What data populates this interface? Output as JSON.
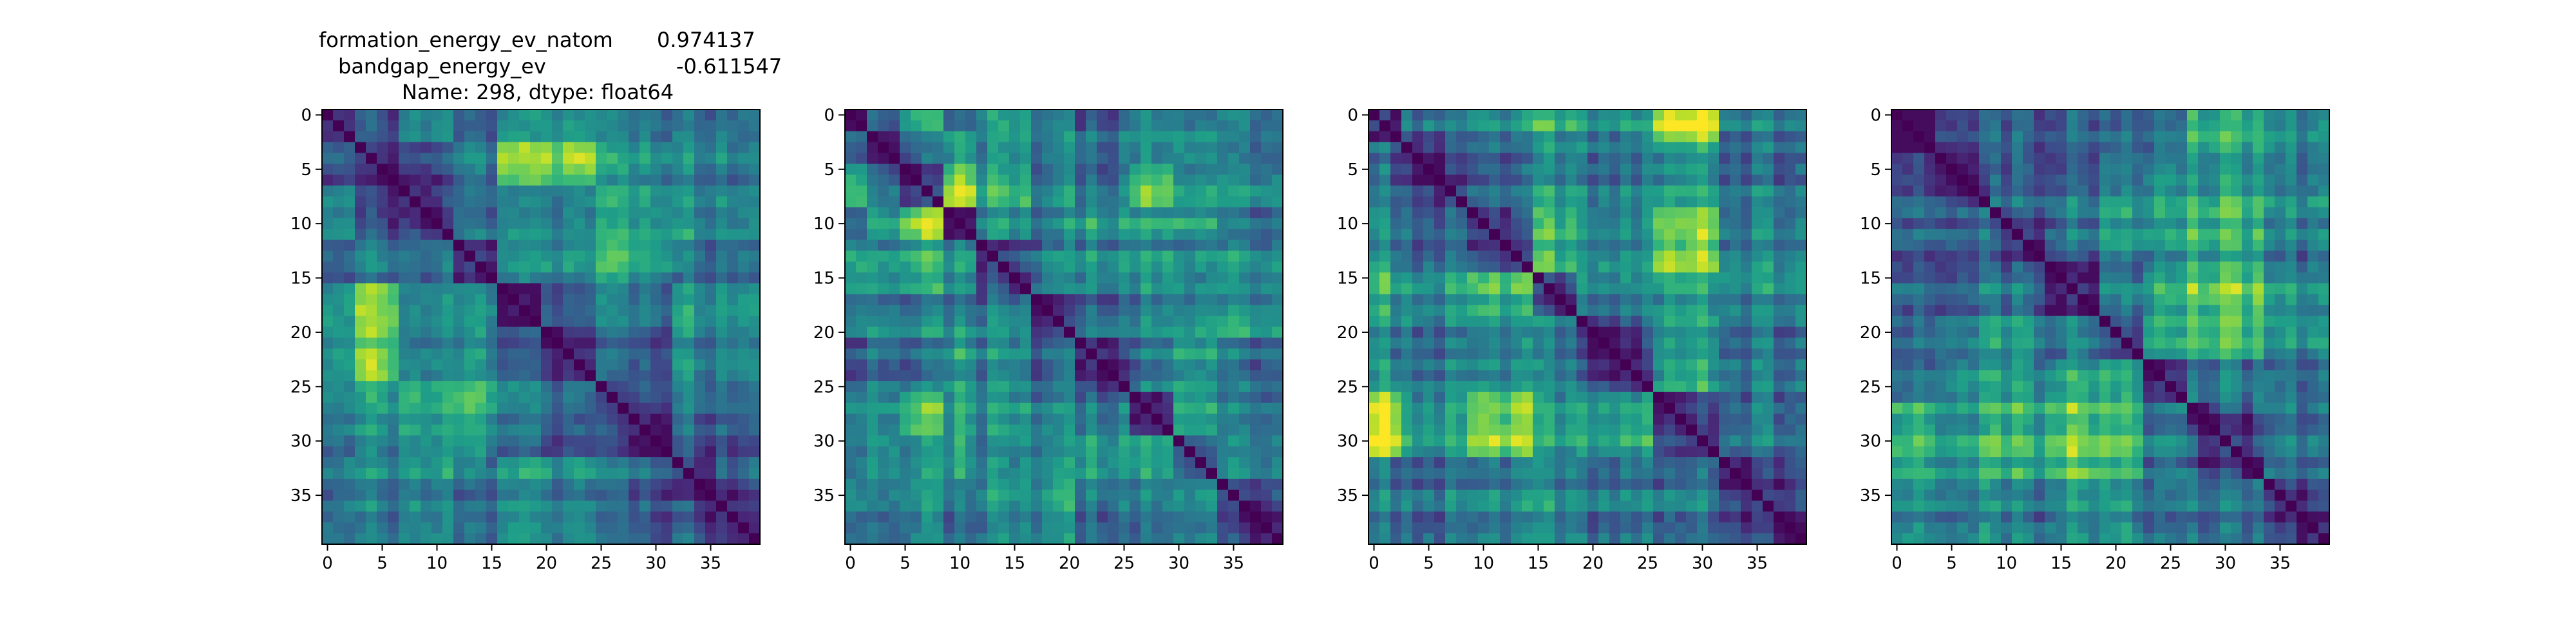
{
  "figure": {
    "title_lines": [
      {
        "label": "formation_energy_ev_natom",
        "value": "0.974137"
      },
      {
        "label": "bandgap_energy_ev",
        "value": "-0.611547"
      },
      {
        "text": "Name: 298, dtype: float64"
      }
    ]
  },
  "colormap": {
    "name": "viridis",
    "stops": [
      "#440154",
      "#482878",
      "#3e4989",
      "#31688e",
      "#26828e",
      "#1f9e89",
      "#35b779",
      "#6ece58",
      "#b5de2b",
      "#fde725"
    ]
  },
  "chart_data": [
    {
      "type": "heatmap",
      "size": 40,
      "xticks": [
        0,
        5,
        10,
        15,
        20,
        25,
        30,
        35
      ],
      "yticks": [
        0,
        5,
        10,
        15,
        20,
        25,
        30,
        35
      ],
      "diagonal_value": 0,
      "blocks": [
        0,
        3,
        7,
        12,
        16,
        20,
        25,
        32,
        40
      ],
      "block_levels": [
        [
          0.0,
          0.25,
          0.45,
          0.3,
          0.55,
          0.5,
          0.4,
          0.35
        ],
        [
          0.25,
          0.0,
          0.2,
          0.4,
          0.85,
          0.8,
          0.5,
          0.4
        ],
        [
          0.45,
          0.2,
          0.0,
          0.35,
          0.5,
          0.45,
          0.55,
          0.45
        ],
        [
          0.3,
          0.4,
          0.35,
          0.0,
          0.55,
          0.5,
          0.6,
          0.35
        ],
        [
          0.55,
          0.85,
          0.5,
          0.55,
          0.0,
          0.35,
          0.45,
          0.55
        ],
        [
          0.5,
          0.8,
          0.45,
          0.5,
          0.35,
          0.0,
          0.3,
          0.45
        ],
        [
          0.4,
          0.5,
          0.55,
          0.6,
          0.45,
          0.3,
          0.0,
          0.3
        ],
        [
          0.35,
          0.4,
          0.45,
          0.35,
          0.55,
          0.45,
          0.3,
          0.0
        ]
      ],
      "seed": 11
    },
    {
      "type": "heatmap",
      "size": 40,
      "xticks": [
        0,
        5,
        10,
        15,
        20,
        25,
        30,
        35
      ],
      "yticks": [
        0,
        5,
        10,
        15,
        20,
        25,
        30,
        35
      ],
      "diagonal_value": 0,
      "blocks": [
        0,
        2,
        5,
        9,
        12,
        17,
        21,
        26,
        30,
        34,
        40
      ],
      "block_levels": [
        [
          0.0,
          0.4,
          0.7,
          0.45,
          0.6,
          0.5,
          0.35,
          0.55,
          0.4,
          0.5
        ],
        [
          0.4,
          0.0,
          0.35,
          0.6,
          0.5,
          0.45,
          0.4,
          0.5,
          0.45,
          0.4
        ],
        [
          0.7,
          0.35,
          0.0,
          0.85,
          0.55,
          0.4,
          0.35,
          0.7,
          0.4,
          0.45
        ],
        [
          0.45,
          0.6,
          0.85,
          0.0,
          0.5,
          0.45,
          0.55,
          0.6,
          0.5,
          0.4
        ],
        [
          0.6,
          0.5,
          0.55,
          0.5,
          0.0,
          0.4,
          0.45,
          0.5,
          0.35,
          0.45
        ],
        [
          0.5,
          0.45,
          0.4,
          0.45,
          0.4,
          0.0,
          0.35,
          0.45,
          0.4,
          0.5
        ],
        [
          0.35,
          0.4,
          0.35,
          0.55,
          0.45,
          0.35,
          0.0,
          0.4,
          0.45,
          0.35
        ],
        [
          0.55,
          0.5,
          0.7,
          0.6,
          0.5,
          0.45,
          0.4,
          0.0,
          0.5,
          0.4
        ],
        [
          0.4,
          0.45,
          0.4,
          0.5,
          0.35,
          0.4,
          0.45,
          0.5,
          0.0,
          0.35
        ],
        [
          0.5,
          0.4,
          0.45,
          0.4,
          0.45,
          0.5,
          0.35,
          0.4,
          0.35,
          0.0
        ]
      ],
      "seed": 23
    },
    {
      "type": "heatmap",
      "size": 40,
      "xticks": [
        0,
        5,
        10,
        15,
        20,
        25,
        30,
        35
      ],
      "yticks": [
        0,
        5,
        10,
        15,
        20,
        25,
        30,
        35
      ],
      "diagonal_value": 0,
      "blocks": [
        0,
        3,
        9,
        15,
        19,
        26,
        32,
        40
      ],
      "block_levels": [
        [
          0.0,
          0.35,
          0.45,
          0.55,
          0.5,
          0.9,
          0.4
        ],
        [
          0.35,
          0.0,
          0.3,
          0.45,
          0.4,
          0.5,
          0.35
        ],
        [
          0.45,
          0.3,
          0.0,
          0.6,
          0.45,
          0.75,
          0.4
        ],
        [
          0.55,
          0.45,
          0.6,
          0.0,
          0.4,
          0.5,
          0.45
        ],
        [
          0.5,
          0.4,
          0.45,
          0.4,
          0.0,
          0.55,
          0.4
        ],
        [
          0.9,
          0.5,
          0.75,
          0.5,
          0.55,
          0.0,
          0.35
        ],
        [
          0.4,
          0.35,
          0.4,
          0.45,
          0.4,
          0.35,
          0.0
        ]
      ],
      "seed": 37
    },
    {
      "type": "heatmap",
      "size": 40,
      "xticks": [
        0,
        5,
        10,
        15,
        20,
        25,
        30,
        35
      ],
      "yticks": [
        0,
        5,
        10,
        15,
        20,
        25,
        30,
        35
      ],
      "diagonal_value": 0,
      "blocks": [
        0,
        4,
        9,
        14,
        19,
        23,
        27,
        34,
        40
      ],
      "block_levels": [
        [
          0.0,
          0.3,
          0.35,
          0.4,
          0.35,
          0.45,
          0.7,
          0.55
        ],
        [
          0.3,
          0.0,
          0.3,
          0.35,
          0.4,
          0.5,
          0.55,
          0.45
        ],
        [
          0.35,
          0.3,
          0.0,
          0.35,
          0.45,
          0.5,
          0.6,
          0.4
        ],
        [
          0.4,
          0.35,
          0.35,
          0.0,
          0.4,
          0.6,
          0.75,
          0.5
        ],
        [
          0.35,
          0.4,
          0.45,
          0.4,
          0.0,
          0.55,
          0.65,
          0.45
        ],
        [
          0.45,
          0.5,
          0.5,
          0.6,
          0.55,
          0.0,
          0.4,
          0.35
        ],
        [
          0.7,
          0.55,
          0.6,
          0.75,
          0.65,
          0.4,
          0.0,
          0.35
        ],
        [
          0.55,
          0.45,
          0.4,
          0.5,
          0.45,
          0.35,
          0.35,
          0.0
        ]
      ],
      "seed": 51
    }
  ]
}
